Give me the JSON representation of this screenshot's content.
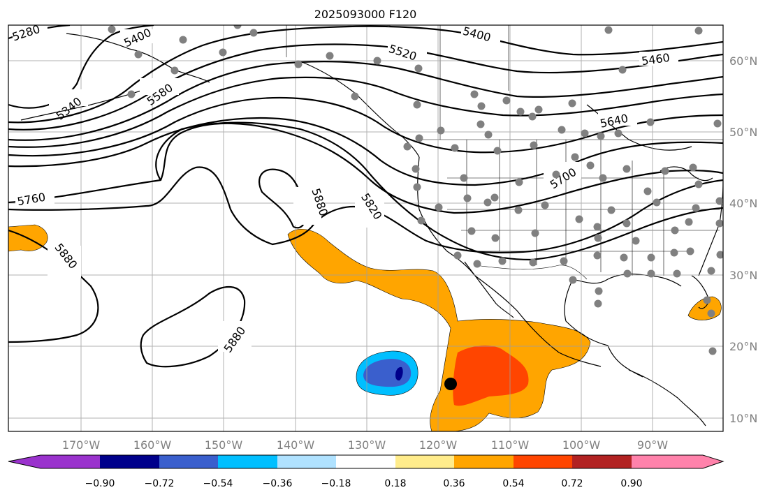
{
  "title": "2025093000 F120",
  "lon_labels": [
    "170°W",
    "160°W",
    "150°W",
    "140°W",
    "130°W",
    "120°W",
    "110°W",
    "100°W",
    "90°W"
  ],
  "lat_labels": [
    "60°N",
    "50°N",
    "40°N",
    "30°N",
    "20°N",
    "10°N"
  ],
  "contour_labels": [
    "5280",
    "5400",
    "5400",
    "5520",
    "5460",
    "5340",
    "5580",
    "5640",
    "5700",
    "5760",
    "5880",
    "5820",
    "5880",
    "5880"
  ],
  "colorbar": {
    "ticks": [
      "−0.90",
      "−0.72",
      "−0.54",
      "−0.36",
      "−0.18",
      "0.18",
      "0.36",
      "0.54",
      "0.72",
      "0.90"
    ],
    "colors": [
      "#9a32cd",
      "#00008b",
      "#3a5fcd",
      "#00bfff",
      "#b0e2ff",
      "#ffffff",
      "#ffec8b",
      "#ffa500",
      "#ff4500",
      "#b22222",
      "#ff82ab"
    ]
  },
  "colors": {
    "axes": "#000000",
    "grid": "#a0a0a0",
    "station": "#808080",
    "storm": "#000000"
  }
}
